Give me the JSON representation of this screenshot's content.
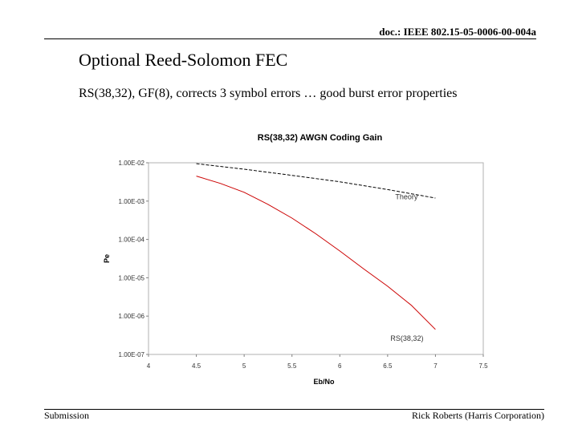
{
  "header": {
    "doc_id": "doc.: IEEE 802.15-05-0006-00-004a"
  },
  "slide": {
    "title": "Optional Reed-Solomon FEC",
    "subtitle": "RS(38,32), GF(8), corrects 3 symbol errors … good burst error properties"
  },
  "footer": {
    "left": "Submission",
    "right": "Rick Roberts (Harris Corporation)"
  },
  "colors": {
    "theory": "#000000",
    "rs": "#cc0000"
  },
  "chart_data": {
    "type": "line",
    "title": "RS(38,32) AWGN Coding Gain",
    "xlabel": "Eb/No",
    "ylabel": "Pe",
    "xlim": [
      4,
      7.5
    ],
    "ylim_log10": [
      -7,
      -2
    ],
    "x_ticks": [
      4,
      4.5,
      5,
      5.5,
      6,
      6.5,
      7,
      7.5
    ],
    "x_tick_labels": [
      "4",
      "4.5",
      "5",
      "5.5",
      "6",
      "6.5",
      "7",
      "7.5"
    ],
    "y_ticks_log10": [
      -2,
      -3,
      -4,
      -5,
      -6,
      -7
    ],
    "y_tick_labels": [
      "1.00E-02",
      "1.00E-03",
      "1.00E-04",
      "1.00E-05",
      "1.00E-06",
      "1.00E-07"
    ],
    "series": [
      {
        "name": "Theory",
        "style": "dashed",
        "x": [
          4.5,
          5.0,
          5.5,
          6.0,
          6.5,
          7.0
        ],
        "y": [
          0.0095,
          0.0068,
          0.0047,
          0.0032,
          0.002,
          0.0012
        ]
      },
      {
        "name": "RS(38,32)",
        "style": "solid",
        "x": [
          4.5,
          4.75,
          5.0,
          5.25,
          5.5,
          5.75,
          6.0,
          6.25,
          6.5,
          6.75,
          7.0
        ],
        "y": [
          0.0045,
          0.0029,
          0.0017,
          0.00082,
          0.00036,
          0.00014,
          5e-05,
          1.7e-05,
          6e-06,
          1.9e-06,
          4.5e-07
        ]
      }
    ],
    "annotations": [
      {
        "text": "Theory",
        "series": "Theory"
      },
      {
        "text": "RS(38,32)",
        "series": "RS(38,32)"
      }
    ]
  }
}
